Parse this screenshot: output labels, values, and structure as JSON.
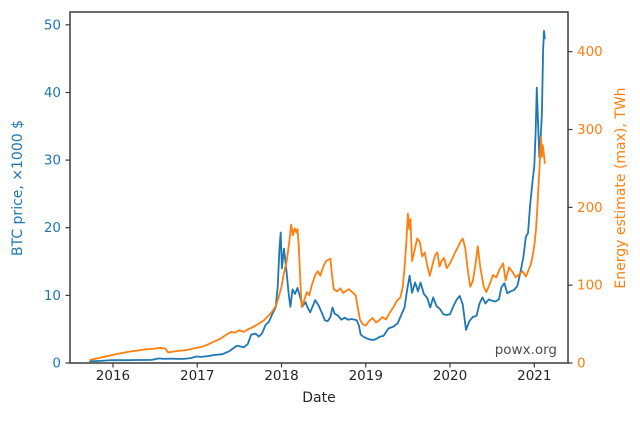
{
  "colors": {
    "btc_blue": "#1f77b4",
    "energy_orange": "#ff7f0e",
    "axis_text": "#262626",
    "spine": "#3a3a3a",
    "watermark": "#4d4d4d"
  },
  "chart_data": {
    "type": "line",
    "title": "",
    "xlabel": "Date",
    "ylabel_left": "BTC price, ×1000 $",
    "ylabel_right": "Energy estimate (max), TWh",
    "watermark": "powx.org",
    "grid": false,
    "legend": "none",
    "x_ticks": [
      2016,
      2017,
      2018,
      2019,
      2020,
      2021
    ],
    "y_ticks_left": [
      0,
      10,
      20,
      30,
      40,
      50
    ],
    "y_ticks_right": [
      0,
      100,
      200,
      300,
      400
    ],
    "xlim": [
      2015.49,
      2021.4
    ],
    "ylim_left": [
      0,
      51.9
    ],
    "ylim_right": [
      0,
      451
    ],
    "series": [
      {
        "name": "BTC price, ×1000 $",
        "axis": "left",
        "color": "#1f77b4",
        "points": [
          [
            2015.73,
            0.25
          ],
          [
            2015.82,
            0.3
          ],
          [
            2015.9,
            0.36
          ],
          [
            2015.98,
            0.43
          ],
          [
            2016.08,
            0.42
          ],
          [
            2016.18,
            0.42
          ],
          [
            2016.28,
            0.44
          ],
          [
            2016.38,
            0.45
          ],
          [
            2016.46,
            0.46
          ],
          [
            2016.5,
            0.58
          ],
          [
            2016.55,
            0.68
          ],
          [
            2016.6,
            0.61
          ],
          [
            2016.68,
            0.65
          ],
          [
            2016.76,
            0.61
          ],
          [
            2016.84,
            0.6
          ],
          [
            2016.92,
            0.72
          ],
          [
            2016.99,
            0.96
          ],
          [
            2017.05,
            0.9
          ],
          [
            2017.12,
            1.0
          ],
          [
            2017.2,
            1.18
          ],
          [
            2017.3,
            1.3
          ],
          [
            2017.38,
            1.75
          ],
          [
            2017.43,
            2.2
          ],
          [
            2017.47,
            2.55
          ],
          [
            2017.51,
            2.45
          ],
          [
            2017.55,
            2.3
          ],
          [
            2017.6,
            2.8
          ],
          [
            2017.64,
            4.2
          ],
          [
            2017.69,
            4.35
          ],
          [
            2017.73,
            3.9
          ],
          [
            2017.77,
            4.4
          ],
          [
            2017.81,
            5.6
          ],
          [
            2017.85,
            6.1
          ],
          [
            2017.89,
            7.2
          ],
          [
            2017.93,
            8.2
          ],
          [
            2017.955,
            11.2
          ],
          [
            2017.975,
            16.8
          ],
          [
            2017.99,
            19.3
          ],
          [
            2018.005,
            14.0
          ],
          [
            2018.03,
            16.9
          ],
          [
            2018.06,
            13.4
          ],
          [
            2018.085,
            10.2
          ],
          [
            2018.105,
            8.3
          ],
          [
            2018.13,
            10.9
          ],
          [
            2018.16,
            10.2
          ],
          [
            2018.19,
            11.1
          ],
          [
            2018.22,
            9.8
          ],
          [
            2018.25,
            8.4
          ],
          [
            2018.285,
            9.0
          ],
          [
            2018.31,
            8.2
          ],
          [
            2018.34,
            7.5
          ],
          [
            2018.37,
            8.4
          ],
          [
            2018.4,
            9.3
          ],
          [
            2018.44,
            8.5
          ],
          [
            2018.48,
            7.4
          ],
          [
            2018.515,
            6.3
          ],
          [
            2018.55,
            6.2
          ],
          [
            2018.58,
            6.8
          ],
          [
            2018.605,
            8.2
          ],
          [
            2018.63,
            7.3
          ],
          [
            2018.67,
            7.0
          ],
          [
            2018.71,
            6.4
          ],
          [
            2018.75,
            6.7
          ],
          [
            2018.79,
            6.4
          ],
          [
            2018.83,
            6.5
          ],
          [
            2018.87,
            6.4
          ],
          [
            2018.895,
            6.3
          ],
          [
            2018.92,
            5.5
          ],
          [
            2018.94,
            4.2
          ],
          [
            2018.97,
            3.9
          ],
          [
            2019.0,
            3.7
          ],
          [
            2019.04,
            3.5
          ],
          [
            2019.09,
            3.4
          ],
          [
            2019.13,
            3.6
          ],
          [
            2019.17,
            3.9
          ],
          [
            2019.21,
            4.0
          ],
          [
            2019.27,
            5.1
          ],
          [
            2019.33,
            5.4
          ],
          [
            2019.38,
            5.9
          ],
          [
            2019.42,
            7.1
          ],
          [
            2019.46,
            8.2
          ],
          [
            2019.49,
            10.8
          ],
          [
            2019.52,
            12.9
          ],
          [
            2019.55,
            10.4
          ],
          [
            2019.585,
            11.9
          ],
          [
            2019.62,
            10.6
          ],
          [
            2019.65,
            11.9
          ],
          [
            2019.69,
            10.2
          ],
          [
            2019.73,
            9.6
          ],
          [
            2019.765,
            8.2
          ],
          [
            2019.8,
            9.7
          ],
          [
            2019.84,
            8.4
          ],
          [
            2019.88,
            8.0
          ],
          [
            2019.92,
            7.2
          ],
          [
            2019.96,
            7.1
          ],
          [
            2020.0,
            7.2
          ],
          [
            2020.04,
            8.4
          ],
          [
            2020.08,
            9.4
          ],
          [
            2020.115,
            9.9
          ],
          [
            2020.15,
            8.7
          ],
          [
            2020.19,
            4.9
          ],
          [
            2020.23,
            6.2
          ],
          [
            2020.27,
            6.8
          ],
          [
            2020.315,
            7.0
          ],
          [
            2020.35,
            8.8
          ],
          [
            2020.385,
            9.7
          ],
          [
            2020.42,
            8.8
          ],
          [
            2020.46,
            9.4
          ],
          [
            2020.5,
            9.2
          ],
          [
            2020.54,
            9.1
          ],
          [
            2020.58,
            9.4
          ],
          [
            2020.61,
            11.2
          ],
          [
            2020.645,
            11.8
          ],
          [
            2020.68,
            10.3
          ],
          [
            2020.72,
            10.6
          ],
          [
            2020.76,
            10.8
          ],
          [
            2020.8,
            11.4
          ],
          [
            2020.84,
            13.7
          ],
          [
            2020.87,
            15.6
          ],
          [
            2020.9,
            18.7
          ],
          [
            2020.925,
            19.2
          ],
          [
            2020.95,
            23.3
          ],
          [
            2020.98,
            27.0
          ],
          [
            2021.0,
            29.1
          ],
          [
            2021.015,
            33.9
          ],
          [
            2021.03,
            40.7
          ],
          [
            2021.045,
            35.3
          ],
          [
            2021.06,
            30.4
          ],
          [
            2021.075,
            33.2
          ],
          [
            2021.09,
            36.8
          ],
          [
            2021.105,
            46.2
          ],
          [
            2021.115,
            49.1
          ],
          [
            2021.125,
            48.0
          ]
        ]
      },
      {
        "name": "Energy estimate (max), TWh",
        "axis": "right",
        "color": "#ff7f0e",
        "points": [
          [
            2015.73,
            4
          ],
          [
            2015.82,
            6
          ],
          [
            2015.9,
            8
          ],
          [
            2015.98,
            10
          ],
          [
            2016.06,
            12
          ],
          [
            2016.14,
            13.5
          ],
          [
            2016.22,
            15
          ],
          [
            2016.3,
            16
          ],
          [
            2016.38,
            17.5
          ],
          [
            2016.44,
            18
          ],
          [
            2016.5,
            18.5
          ],
          [
            2016.56,
            19.5
          ],
          [
            2016.62,
            18.5
          ],
          [
            2016.655,
            13.5
          ],
          [
            2016.7,
            14.5
          ],
          [
            2016.78,
            15.5
          ],
          [
            2016.86,
            16.5
          ],
          [
            2016.93,
            18
          ],
          [
            2016.99,
            19.5
          ],
          [
            2017.06,
            21
          ],
          [
            2017.13,
            24
          ],
          [
            2017.2,
            27.5
          ],
          [
            2017.27,
            31
          ],
          [
            2017.34,
            36
          ],
          [
            2017.4,
            40
          ],
          [
            2017.45,
            39
          ],
          [
            2017.5,
            42
          ],
          [
            2017.55,
            40
          ],
          [
            2017.6,
            43
          ],
          [
            2017.66,
            46
          ],
          [
            2017.72,
            50
          ],
          [
            2017.78,
            54
          ],
          [
            2017.84,
            60
          ],
          [
            2017.89,
            66
          ],
          [
            2017.93,
            73
          ],
          [
            2017.96,
            82
          ],
          [
            2018.0,
            98
          ],
          [
            2018.03,
            116
          ],
          [
            2018.06,
            130
          ],
          [
            2018.09,
            154
          ],
          [
            2018.115,
            178
          ],
          [
            2018.135,
            164
          ],
          [
            2018.155,
            173
          ],
          [
            2018.175,
            168
          ],
          [
            2018.19,
            172
          ],
          [
            2018.205,
            150
          ],
          [
            2018.22,
            115
          ],
          [
            2018.24,
            72
          ],
          [
            2018.27,
            81
          ],
          [
            2018.3,
            91
          ],
          [
            2018.33,
            87
          ],
          [
            2018.36,
            100
          ],
          [
            2018.4,
            113
          ],
          [
            2018.43,
            118
          ],
          [
            2018.46,
            112
          ],
          [
            2018.5,
            125
          ],
          [
            2018.53,
            131
          ],
          [
            2018.58,
            134
          ],
          [
            2018.6,
            112
          ],
          [
            2018.62,
            95
          ],
          [
            2018.66,
            92
          ],
          [
            2018.7,
            96
          ],
          [
            2018.73,
            90
          ],
          [
            2018.76,
            92
          ],
          [
            2018.8,
            95
          ],
          [
            2018.84,
            91
          ],
          [
            2018.88,
            87
          ],
          [
            2018.905,
            71
          ],
          [
            2018.93,
            56
          ],
          [
            2018.96,
            50
          ],
          [
            2019.0,
            48
          ],
          [
            2019.04,
            54
          ],
          [
            2019.08,
            58
          ],
          [
            2019.12,
            52
          ],
          [
            2019.16,
            55
          ],
          [
            2019.2,
            59
          ],
          [
            2019.24,
            56
          ],
          [
            2019.28,
            64
          ],
          [
            2019.33,
            72
          ],
          [
            2019.37,
            80
          ],
          [
            2019.41,
            84
          ],
          [
            2019.44,
            98
          ],
          [
            2019.46,
            122
          ],
          [
            2019.48,
            152
          ],
          [
            2019.5,
            192
          ],
          [
            2019.515,
            172
          ],
          [
            2019.53,
            185
          ],
          [
            2019.55,
            131
          ],
          [
            2019.58,
            145
          ],
          [
            2019.61,
            160
          ],
          [
            2019.64,
            156
          ],
          [
            2019.67,
            137
          ],
          [
            2019.7,
            142
          ],
          [
            2019.73,
            125
          ],
          [
            2019.76,
            112
          ],
          [
            2019.79,
            125
          ],
          [
            2019.82,
            138
          ],
          [
            2019.85,
            142
          ],
          [
            2019.875,
            124
          ],
          [
            2019.9,
            131
          ],
          [
            2019.93,
            135
          ],
          [
            2019.96,
            122
          ],
          [
            2020.0,
            128
          ],
          [
            2020.03,
            135
          ],
          [
            2020.06,
            142
          ],
          [
            2020.09,
            148
          ],
          [
            2020.12,
            155
          ],
          [
            2020.15,
            160
          ],
          [
            2020.18,
            148
          ],
          [
            2020.21,
            120
          ],
          [
            2020.24,
            98
          ],
          [
            2020.27,
            105
          ],
          [
            2020.3,
            125
          ],
          [
            2020.33,
            150
          ],
          [
            2020.36,
            122
          ],
          [
            2020.4,
            98
          ],
          [
            2020.43,
            91
          ],
          [
            2020.47,
            101
          ],
          [
            2020.51,
            113
          ],
          [
            2020.55,
            110
          ],
          [
            2020.59,
            121
          ],
          [
            2020.63,
            128
          ],
          [
            2020.66,
            106
          ],
          [
            2020.7,
            123
          ],
          [
            2020.74,
            117
          ],
          [
            2020.78,
            110
          ],
          [
            2020.82,
            114
          ],
          [
            2020.86,
            118
          ],
          [
            2020.9,
            111
          ],
          [
            2020.93,
            119
          ],
          [
            2020.96,
            127
          ],
          [
            2020.985,
            140
          ],
          [
            2021.005,
            155
          ],
          [
            2021.02,
            172
          ],
          [
            2021.035,
            196
          ],
          [
            2021.05,
            228
          ],
          [
            2021.065,
            258
          ],
          [
            2021.08,
            290
          ],
          [
            2021.09,
            265
          ],
          [
            2021.1,
            280
          ],
          [
            2021.11,
            272
          ],
          [
            2021.12,
            262
          ],
          [
            2021.125,
            257
          ]
        ]
      }
    ]
  }
}
